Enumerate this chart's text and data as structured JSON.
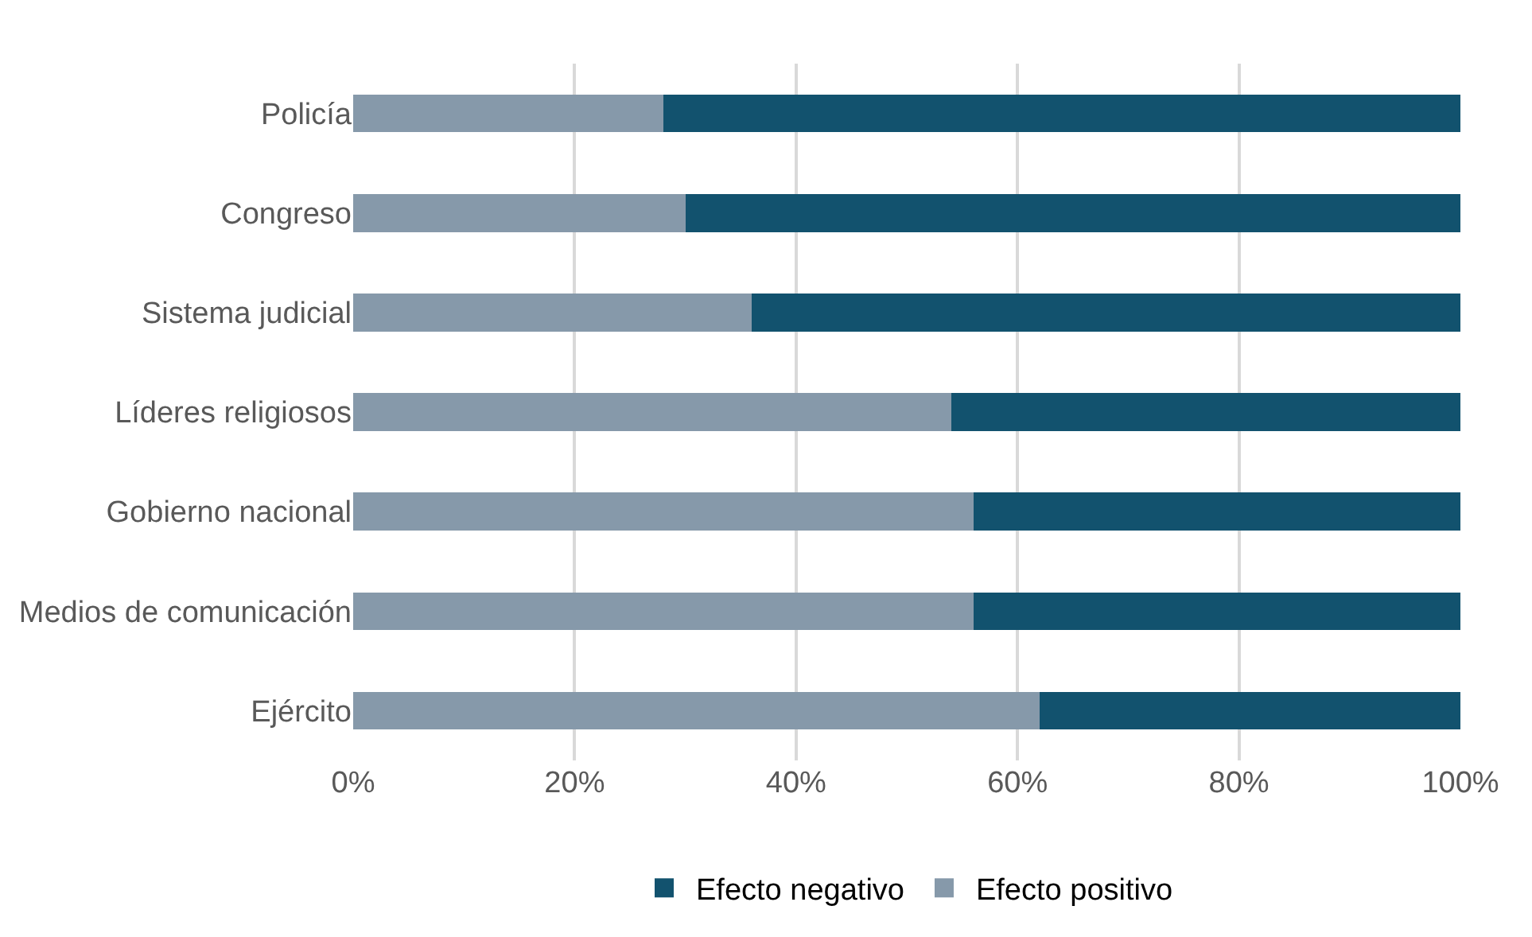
{
  "chart_data": {
    "type": "bar",
    "orientation": "horizontal",
    "stacked": true,
    "categories": [
      "Policía",
      "Congreso",
      "Sistema judicial",
      "Líderes religiosos",
      "Gobierno nacional",
      "Medios de comunicación",
      "Ejército"
    ],
    "series": [
      {
        "name": "Efecto positivo",
        "color": "#8699aa",
        "values": [
          28,
          30,
          36,
          54,
          56,
          56,
          62
        ]
      },
      {
        "name": "Efecto negativo",
        "color": "#12526e",
        "values": [
          72,
          70,
          64,
          46,
          44,
          44,
          38
        ]
      }
    ],
    "xlim": [
      0,
      100
    ],
    "xticks": [
      {
        "value": 0,
        "label": "0%"
      },
      {
        "value": 20,
        "label": "20%"
      },
      {
        "value": 40,
        "label": "40%"
      },
      {
        "value": 60,
        "label": "60%"
      },
      {
        "value": 80,
        "label": "80%"
      },
      {
        "value": 100,
        "label": "100%"
      }
    ],
    "grid": "x",
    "legend": "bottom"
  }
}
